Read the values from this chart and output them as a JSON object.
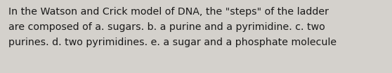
{
  "text_lines": [
    "In the Watson and Crick model of DNA, the \"steps\" of the ladder",
    "are composed of a. sugars. b. a purine and a pyrimidine. c. two",
    "purines. d. two pyrimidines. e. a sugar and a phosphate molecule"
  ],
  "background_color": "#d4d1cc",
  "text_color": "#1a1a1a",
  "font_size": 10.2,
  "fig_width": 5.58,
  "fig_height": 1.05,
  "dpi": 100
}
